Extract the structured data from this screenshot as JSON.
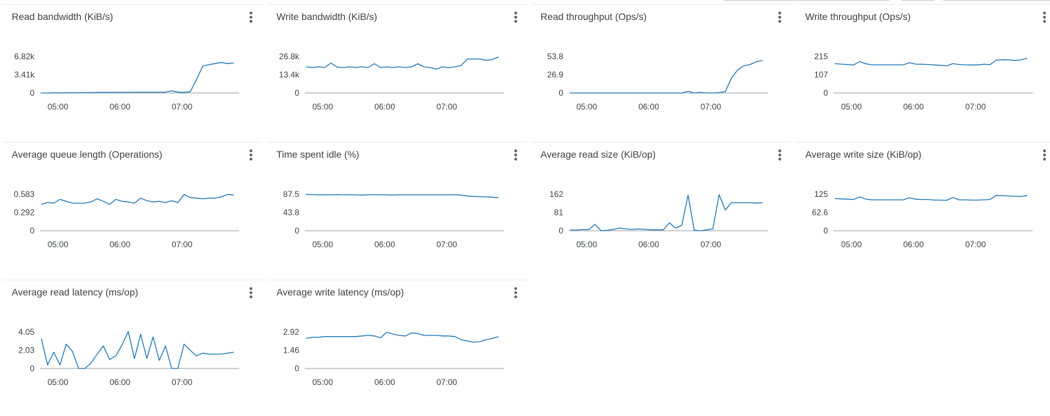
{
  "colors": {
    "series": "#1f77b4",
    "axis": "#9aa0a6",
    "grid": "#dadce0",
    "text": "#3c4043",
    "menu_icon": "#5f6368"
  },
  "card_menu_icon": "more-vert-icon",
  "chart_data": [
    {
      "type": "line",
      "title": "Read bandwidth (KiB/s)",
      "x": [
        "04:44",
        "04:50",
        "04:56",
        "05:02",
        "05:08",
        "05:14",
        "05:20",
        "05:26",
        "05:32",
        "05:38",
        "05:44",
        "05:50",
        "05:56",
        "06:02",
        "06:08",
        "06:14",
        "06:20",
        "06:26",
        "06:32",
        "06:38",
        "06:44",
        "06:50",
        "06:56",
        "07:02",
        "07:08",
        "07:14",
        "07:20",
        "07:26",
        "07:32",
        "07:38",
        "07:44",
        "07:50"
      ],
      "x_ticks": [
        "05:00",
        "06:00",
        "07:00"
      ],
      "y_ticks": [
        "0",
        "3.41k",
        "6.82k"
      ],
      "ylim": [
        0,
        6820
      ],
      "series": [
        {
          "values": [
            0,
            0,
            20,
            30,
            40,
            50,
            60,
            70,
            80,
            90,
            100,
            100,
            110,
            120,
            120,
            130,
            130,
            130,
            130,
            130,
            150,
            400,
            150,
            100,
            250,
            2500,
            5000,
            5300,
            5500,
            5700,
            5500,
            5600
          ]
        }
      ]
    },
    {
      "type": "line",
      "title": "Write bandwidth (KiB/s)",
      "x": [
        "04:44",
        "04:50",
        "04:56",
        "05:02",
        "05:08",
        "05:14",
        "05:20",
        "05:26",
        "05:32",
        "05:38",
        "05:44",
        "05:50",
        "05:56",
        "06:02",
        "06:08",
        "06:14",
        "06:20",
        "06:26",
        "06:32",
        "06:38",
        "06:44",
        "06:50",
        "06:56",
        "07:02",
        "07:08",
        "07:14",
        "07:20",
        "07:26",
        "07:32",
        "07:38",
        "07:44",
        "07:50"
      ],
      "x_ticks": [
        "05:00",
        "06:00",
        "07:00"
      ],
      "y_ticks": [
        "0",
        "13.4k",
        "26.8k"
      ],
      "ylim": [
        0,
        26800
      ],
      "series": [
        {
          "values": [
            19200,
            18700,
            19200,
            18700,
            22000,
            19000,
            18700,
            19200,
            18700,
            19200,
            18700,
            21500,
            18700,
            19200,
            18700,
            19200,
            18700,
            19200,
            21500,
            19200,
            18700,
            17500,
            19200,
            18500,
            19200,
            20200,
            25000,
            25000,
            25000,
            24000,
            24500,
            26500
          ]
        }
      ]
    },
    {
      "type": "line",
      "title": "Read throughput (Ops/s)",
      "x": [
        "04:44",
        "04:50",
        "04:56",
        "05:02",
        "05:08",
        "05:14",
        "05:20",
        "05:26",
        "05:32",
        "05:38",
        "05:44",
        "05:50",
        "05:56",
        "06:02",
        "06:08",
        "06:14",
        "06:20",
        "06:26",
        "06:32",
        "06:38",
        "06:44",
        "06:50",
        "06:56",
        "07:02",
        "07:08",
        "07:14",
        "07:20",
        "07:26",
        "07:32",
        "07:38",
        "07:44",
        "07:50"
      ],
      "x_ticks": [
        "05:00",
        "06:00",
        "07:00"
      ],
      "y_ticks": [
        "0",
        "26.9",
        "53.8"
      ],
      "ylim": [
        0,
        53.8
      ],
      "series": [
        {
          "values": [
            0,
            0,
            0,
            0,
            0,
            0,
            0,
            0,
            0,
            0,
            0,
            0,
            0,
            0,
            0,
            0,
            0,
            0,
            0,
            2.5,
            0,
            1,
            0,
            0,
            0.5,
            2,
            22,
            34,
            40,
            42,
            46,
            48
          ]
        }
      ]
    },
    {
      "type": "line",
      "title": "Write throughput (Ops/s)",
      "x": [
        "04:44",
        "04:50",
        "04:56",
        "05:02",
        "05:08",
        "05:14",
        "05:20",
        "05:26",
        "05:32",
        "05:38",
        "05:44",
        "05:50",
        "05:56",
        "06:02",
        "06:08",
        "06:14",
        "06:20",
        "06:26",
        "06:32",
        "06:38",
        "06:44",
        "06:50",
        "06:56",
        "07:02",
        "07:08",
        "07:14",
        "07:20",
        "07:26",
        "07:32",
        "07:38",
        "07:44",
        "07:50"
      ],
      "x_ticks": [
        "05:00",
        "06:00",
        "07:00"
      ],
      "y_ticks": [
        "0",
        "107",
        "215"
      ],
      "ylim": [
        0,
        215
      ],
      "series": [
        {
          "values": [
            173,
            170,
            168,
            165,
            185,
            172,
            166,
            166,
            166,
            166,
            166,
            166,
            178,
            170,
            169,
            168,
            165,
            163,
            160,
            173,
            168,
            166,
            165,
            165,
            169,
            167,
            193,
            196,
            195,
            192,
            195,
            205
          ]
        }
      ]
    },
    {
      "type": "line",
      "title": "Average queue length (Operations)",
      "x": [
        "04:44",
        "04:50",
        "04:56",
        "05:02",
        "05:08",
        "05:14",
        "05:20",
        "05:26",
        "05:32",
        "05:38",
        "05:44",
        "05:50",
        "05:56",
        "06:02",
        "06:08",
        "06:14",
        "06:20",
        "06:26",
        "06:32",
        "06:38",
        "06:44",
        "06:50",
        "06:56",
        "07:02",
        "07:08",
        "07:14",
        "07:20",
        "07:26",
        "07:32",
        "07:38",
        "07:44",
        "07:50"
      ],
      "x_ticks": [
        "05:00",
        "06:00",
        "07:00"
      ],
      "y_ticks": [
        "0",
        "0.292",
        "0.583"
      ],
      "ylim": [
        0,
        0.583
      ],
      "series": [
        {
          "values": [
            0.42,
            0.45,
            0.44,
            0.5,
            0.47,
            0.44,
            0.44,
            0.44,
            0.46,
            0.51,
            0.47,
            0.42,
            0.5,
            0.47,
            0.46,
            0.44,
            0.52,
            0.48,
            0.46,
            0.47,
            0.45,
            0.48,
            0.45,
            0.58,
            0.53,
            0.52,
            0.51,
            0.52,
            0.52,
            0.54,
            0.58,
            0.57
          ]
        }
      ]
    },
    {
      "type": "line",
      "title": "Time spent idle (%)",
      "x": [
        "04:44",
        "04:50",
        "04:56",
        "05:02",
        "05:08",
        "05:14",
        "05:20",
        "05:26",
        "05:32",
        "05:38",
        "05:44",
        "05:50",
        "05:56",
        "06:02",
        "06:08",
        "06:14",
        "06:20",
        "06:26",
        "06:32",
        "06:38",
        "06:44",
        "06:50",
        "06:56",
        "07:02",
        "07:08",
        "07:14",
        "07:20",
        "07:26",
        "07:32",
        "07:38",
        "07:44",
        "07:50"
      ],
      "x_ticks": [
        "05:00",
        "06:00",
        "07:00"
      ],
      "y_ticks": [
        "0",
        "43.8",
        "87.5"
      ],
      "ylim": [
        0,
        87.5
      ],
      "series": [
        {
          "values": [
            87,
            86.5,
            86,
            86,
            86,
            86.5,
            86,
            86,
            86,
            85.5,
            86,
            86.5,
            86,
            86,
            85.5,
            86,
            86,
            86,
            86,
            86,
            86,
            86,
            86,
            86,
            86,
            85.5,
            83,
            82,
            81.5,
            81,
            80.5,
            79
          ]
        }
      ]
    },
    {
      "type": "line",
      "title": "Average read size (KiB/op)",
      "x": [
        "04:44",
        "04:50",
        "04:56",
        "05:02",
        "05:08",
        "05:14",
        "05:20",
        "05:26",
        "05:32",
        "05:38",
        "05:44",
        "05:50",
        "05:56",
        "06:02",
        "06:08",
        "06:14",
        "06:20",
        "06:26",
        "06:32",
        "06:38",
        "06:44",
        "06:50",
        "06:56",
        "07:02",
        "07:08",
        "07:14",
        "07:20",
        "07:26",
        "07:32",
        "07:38",
        "07:44",
        "07:50"
      ],
      "x_ticks": [
        "05:00",
        "06:00",
        "07:00"
      ],
      "y_ticks": [
        "0",
        "81",
        "162"
      ],
      "ylim": [
        0,
        162
      ],
      "series": [
        {
          "values": [
            3,
            3,
            5,
            5,
            28,
            0,
            2,
            6,
            12,
            8,
            6,
            8,
            6,
            4,
            4,
            4,
            35,
            12,
            24,
            158,
            2,
            0,
            4,
            8,
            160,
            92,
            125,
            124,
            124,
            124,
            123,
            124
          ]
        }
      ]
    },
    {
      "type": "line",
      "title": "Average write size (KiB/op)",
      "x": [
        "04:44",
        "04:50",
        "04:56",
        "05:02",
        "05:08",
        "05:14",
        "05:20",
        "05:26",
        "05:32",
        "05:38",
        "05:44",
        "05:50",
        "05:56",
        "06:02",
        "06:08",
        "06:14",
        "06:20",
        "06:26",
        "06:32",
        "06:38",
        "06:44",
        "06:50",
        "06:56",
        "07:02",
        "07:08",
        "07:14",
        "07:20",
        "07:26",
        "07:32",
        "07:38",
        "07:44",
        "07:50"
      ],
      "x_ticks": [
        "05:00",
        "06:00",
        "07:00"
      ],
      "y_ticks": [
        "0",
        "62.6",
        "125"
      ],
      "ylim": [
        0,
        125
      ],
      "series": [
        {
          "values": [
            110,
            109,
            108,
            107,
            116,
            108,
            106,
            106,
            106,
            106,
            106,
            106,
            113,
            108,
            107,
            107,
            105,
            105,
            104,
            114,
            106,
            106,
            105,
            105,
            106,
            107,
            121,
            120,
            119,
            118,
            117,
            121
          ]
        }
      ]
    },
    {
      "type": "line",
      "title": "Average read latency (ms/op)",
      "x": [
        "04:44",
        "04:50",
        "04:56",
        "05:02",
        "05:08",
        "05:14",
        "05:20",
        "05:26",
        "05:32",
        "05:38",
        "05:44",
        "05:50",
        "05:56",
        "06:02",
        "06:08",
        "06:14",
        "06:20",
        "06:26",
        "06:32",
        "06:38",
        "06:44",
        "06:50",
        "06:56",
        "07:02",
        "07:08",
        "07:14",
        "07:20",
        "07:26",
        "07:32",
        "07:38",
        "07:44",
        "07:50"
      ],
      "x_ticks": [
        "05:00",
        "06:00",
        "07:00"
      ],
      "y_ticks": [
        "0",
        "2.03",
        "4.05"
      ],
      "ylim": [
        0,
        4.05
      ],
      "series": [
        {
          "values": [
            3.3,
            0.4,
            1.8,
            0.4,
            2.7,
            1.9,
            0,
            0,
            0.6,
            1.6,
            2.5,
            1,
            1.4,
            2.6,
            4.1,
            1.1,
            3.8,
            1.1,
            3.5,
            0.9,
            2.5,
            0,
            0,
            2.7,
            2,
            1.4,
            1.7,
            1.6,
            1.6,
            1.6,
            1.7,
            1.8
          ]
        }
      ]
    },
    {
      "type": "line",
      "title": "Average write latency (ms/op)",
      "x": [
        "04:44",
        "04:50",
        "04:56",
        "05:02",
        "05:08",
        "05:14",
        "05:20",
        "05:26",
        "05:32",
        "05:38",
        "05:44",
        "05:50",
        "05:56",
        "06:02",
        "06:08",
        "06:14",
        "06:20",
        "06:26",
        "06:32",
        "06:38",
        "06:44",
        "06:50",
        "06:56",
        "07:02",
        "07:08",
        "07:14",
        "07:20",
        "07:26",
        "07:32",
        "07:38",
        "07:44",
        "07:50"
      ],
      "x_ticks": [
        "05:00",
        "06:00",
        "07:00"
      ],
      "y_ticks": [
        "0",
        "1.46",
        "2.92"
      ],
      "ylim": [
        0,
        2.92
      ],
      "series": [
        {
          "values": [
            2.4,
            2.5,
            2.5,
            2.55,
            2.55,
            2.55,
            2.55,
            2.55,
            2.55,
            2.6,
            2.65,
            2.6,
            2.45,
            2.9,
            2.75,
            2.65,
            2.6,
            2.85,
            2.8,
            2.65,
            2.65,
            2.65,
            2.6,
            2.6,
            2.55,
            2.3,
            2.2,
            2.1,
            2.15,
            2.3,
            2.4,
            2.55
          ]
        }
      ]
    }
  ]
}
